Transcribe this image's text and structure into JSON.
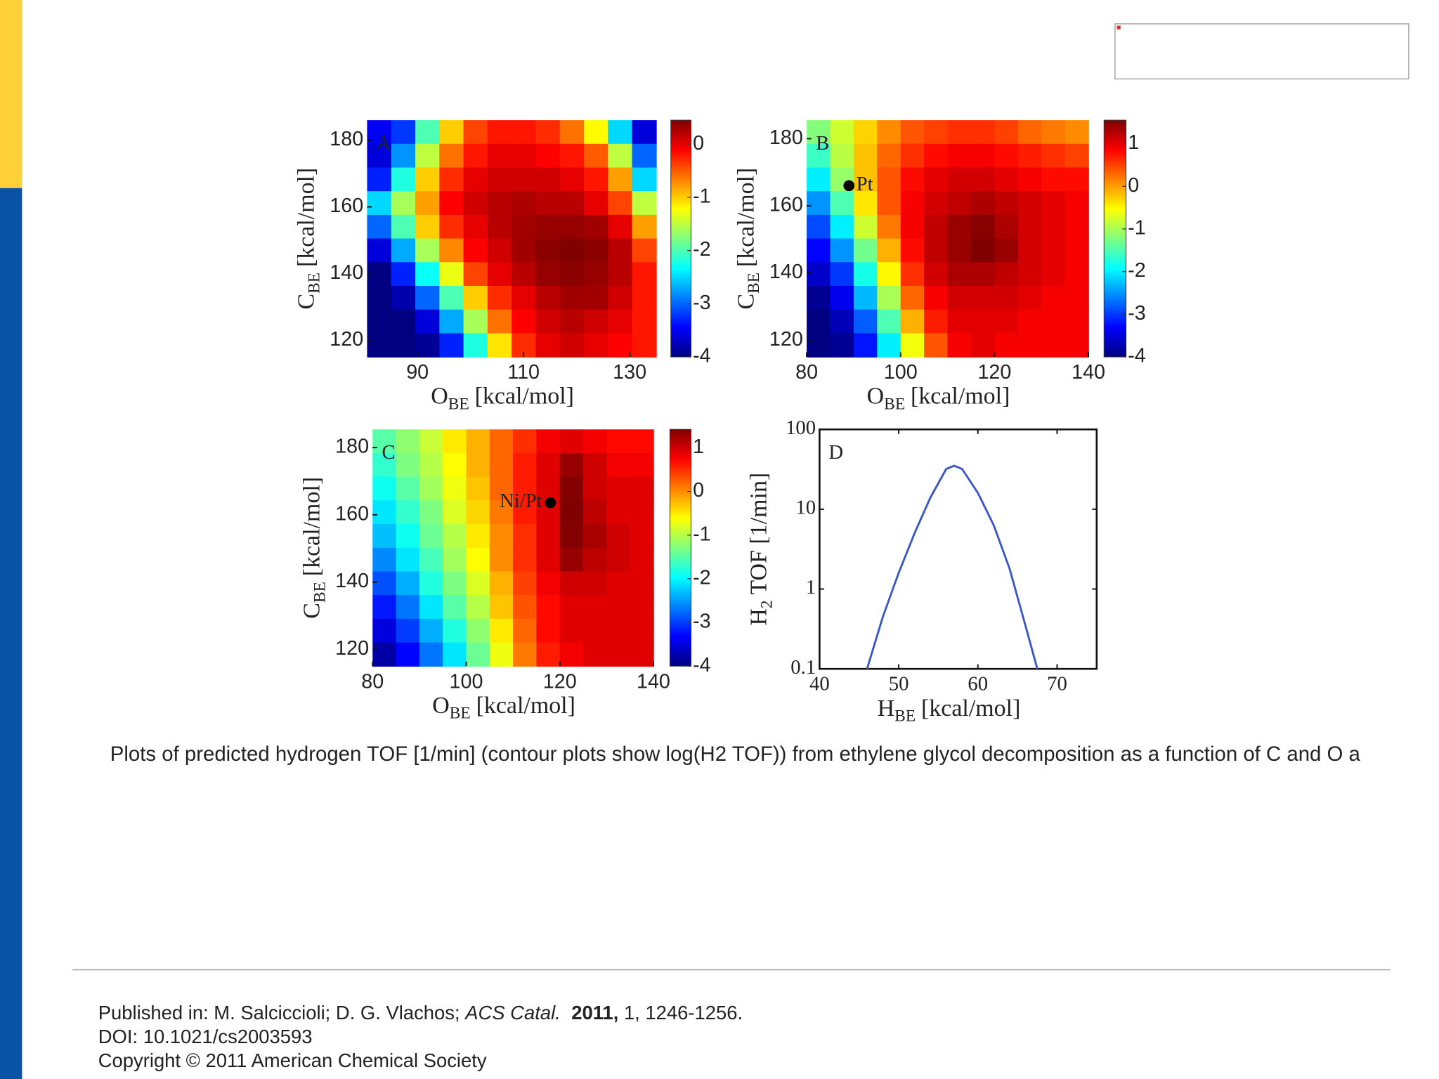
{
  "chart_data": [
    {
      "type": "heatmap",
      "panel": "A",
      "xlabel": {
        "text": "O",
        "sub": "BE",
        "unit": "[kcal/mol]"
      },
      "ylabel": {
        "text": "C",
        "sub": "BE",
        "unit": "[kcal/mol]"
      },
      "xlim": [
        80.5,
        135
      ],
      "xticks": [
        90,
        110,
        130
      ],
      "ylim": [
        115,
        186
      ],
      "yticks": [
        120,
        140,
        160,
        180
      ],
      "zlim": [
        -4,
        0.45
      ],
      "zticks": [
        0,
        -1,
        -2,
        -3,
        -4
      ],
      "z": [
        [
          -3.5,
          -3.2,
          -2,
          -1,
          -0.4,
          -0.2,
          -0.2,
          -0.3,
          -0.6,
          -1.2,
          -2.5,
          -3.6
        ],
        [
          -3.6,
          -2.8,
          -1.5,
          -0.6,
          -0.2,
          0,
          0,
          -0.1,
          -0.2,
          -0.5,
          -1.5,
          -3
        ],
        [
          -3.3,
          -2.2,
          -1,
          -0.3,
          0,
          0.1,
          0.1,
          0.1,
          0,
          -0.2,
          -0.8,
          -2.5
        ],
        [
          -2.5,
          -1.6,
          -0.8,
          -0.1,
          0.1,
          0.2,
          0.25,
          0.2,
          0.2,
          0,
          -0.4,
          -1.5
        ],
        [
          -3,
          -2,
          -1,
          -0.3,
          0,
          0.2,
          0.3,
          0.35,
          0.35,
          0.3,
          0,
          -0.8
        ],
        [
          -3.6,
          -2.7,
          -1.6,
          -0.7,
          -0.1,
          0.1,
          0.3,
          0.4,
          0.45,
          0.4,
          0.2,
          -0.4
        ],
        [
          -4,
          -3.3,
          -2.3,
          -1.3,
          -0.4,
          0,
          0.2,
          0.35,
          0.4,
          0.35,
          0.2,
          -0.2
        ],
        [
          -4,
          -3.8,
          -3,
          -2,
          -1,
          -0.3,
          0,
          0.2,
          0.3,
          0.3,
          0.1,
          -0.2
        ],
        [
          -4,
          -4,
          -3.6,
          -2.7,
          -1.6,
          -0.6,
          -0.1,
          0.1,
          0.2,
          0.1,
          0,
          -0.2
        ],
        [
          -4,
          -4,
          -3.9,
          -3.3,
          -2.2,
          -1.1,
          -0.3,
          0,
          0.1,
          0,
          -0.1,
          -0.2
        ]
      ]
    },
    {
      "type": "heatmap",
      "panel": "B",
      "xlabel": {
        "text": "O",
        "sub": "BE",
        "unit": "[kcal/mol]"
      },
      "ylabel": {
        "text": "C",
        "sub": "BE",
        "unit": "[kcal/mol]"
      },
      "xlim": [
        80,
        140
      ],
      "xticks": [
        80,
        100,
        120,
        140
      ],
      "ylim": [
        115,
        185.5
      ],
      "yticks": [
        120,
        140,
        160,
        180
      ],
      "zlim": [
        -4,
        1.55
      ],
      "zticks": [
        1,
        0,
        -1,
        -2,
        -3,
        -4
      ],
      "points": [
        {
          "x": 89,
          "y": 166,
          "label": "Pt"
        }
      ],
      "z": [
        [
          -1.2,
          -0.8,
          -0.3,
          0.1,
          0.4,
          0.5,
          0.6,
          0.6,
          0.5,
          0.3,
          0.2,
          0.1
        ],
        [
          -1.6,
          -0.9,
          -0.2,
          0.3,
          0.6,
          0.8,
          0.9,
          0.9,
          0.8,
          0.7,
          0.6,
          0.5
        ],
        [
          -2,
          -1.1,
          -0.2,
          0.4,
          0.8,
          1,
          1.1,
          1.1,
          1,
          0.9,
          0.8,
          0.8
        ],
        [
          -2.5,
          -1.5,
          -0.4,
          0.4,
          0.9,
          1.1,
          1.2,
          1.3,
          1.2,
          1.1,
          1,
          0.9
        ],
        [
          -2.9,
          -2,
          -0.8,
          0.2,
          0.9,
          1.2,
          1.4,
          1.5,
          1.3,
          1.1,
          1,
          0.9
        ],
        [
          -3.3,
          -2.5,
          -1.3,
          -0.1,
          0.8,
          1.2,
          1.4,
          1.55,
          1.4,
          1.1,
          1,
          0.9
        ],
        [
          -3.6,
          -3,
          -1.8,
          -0.5,
          0.6,
          1.1,
          1.3,
          1.3,
          1.2,
          1.1,
          1,
          0.9
        ],
        [
          -3.9,
          -3.4,
          -2.3,
          -1,
          0.3,
          0.9,
          1.1,
          1.1,
          1.1,
          1,
          0.9,
          0.9
        ],
        [
          -4,
          -3.7,
          -2.8,
          -1.5,
          -0.1,
          0.7,
          1,
          1,
          1,
          0.9,
          0.9,
          0.9
        ],
        [
          -4,
          -3.9,
          -3.2,
          -2,
          -0.6,
          0.4,
          0.9,
          1,
          0.9,
          0.9,
          0.9,
          0.9
        ]
      ]
    },
    {
      "type": "heatmap",
      "panel": "C",
      "xlabel": {
        "text": "O",
        "sub": "BE",
        "unit": "[kcal/mol]"
      },
      "ylabel": {
        "text": "C",
        "sub": "BE",
        "unit": "[kcal/mol]"
      },
      "xlim": [
        80,
        140
      ],
      "xticks": [
        80,
        100,
        120,
        140
      ],
      "ylim": [
        115,
        185.4
      ],
      "yticks": [
        120,
        140,
        160,
        180
      ],
      "zlim": [
        -4,
        1.42
      ],
      "zticks": [
        1,
        0,
        -1,
        -2,
        -3,
        -4
      ],
      "points": [
        {
          "x": 118,
          "y": 163.6,
          "label": "Ni/Pt"
        }
      ],
      "z": [
        [
          -1.5,
          -1.2,
          -0.9,
          -0.5,
          -0.2,
          0.2,
          0.5,
          0.8,
          0.9,
          0.8,
          0.7,
          0.7
        ],
        [
          -1.7,
          -1.3,
          -1,
          -0.6,
          -0.2,
          0.2,
          0.6,
          0.9,
          1.3,
          1,
          0.8,
          0.8
        ],
        [
          -1.9,
          -1.5,
          -1.1,
          -0.7,
          -0.3,
          0.2,
          0.6,
          0.9,
          1.4,
          1,
          0.9,
          0.9
        ],
        [
          -2.1,
          -1.7,
          -1.3,
          -0.8,
          -0.4,
          0.1,
          0.6,
          0.9,
          1.42,
          1.1,
          0.9,
          0.9
        ],
        [
          -2.3,
          -1.9,
          -1.4,
          -1,
          -0.5,
          0,
          0.5,
          0.9,
          1.4,
          1.2,
          1,
          0.9
        ],
        [
          -2.6,
          -2.1,
          -1.6,
          -1.1,
          -0.6,
          0,
          0.5,
          0.9,
          1.3,
          1.1,
          1,
          0.9
        ],
        [
          -2.9,
          -2.4,
          -1.8,
          -1.3,
          -0.8,
          -0.2,
          0.4,
          0.8,
          1,
          1,
          0.9,
          0.9
        ],
        [
          -3.2,
          -2.7,
          -2.1,
          -1.5,
          -1,
          -0.3,
          0.3,
          0.7,
          0.9,
          0.9,
          0.9,
          0.9
        ],
        [
          -3.5,
          -3,
          -2.4,
          -1.8,
          -1.2,
          -0.5,
          0.2,
          0.7,
          0.9,
          0.9,
          0.9,
          0.9
        ],
        [
          -3.8,
          -3.3,
          -2.7,
          -2.1,
          -1.4,
          -0.7,
          0.1,
          0.6,
          0.8,
          0.9,
          0.9,
          0.9
        ]
      ]
    },
    {
      "type": "line",
      "panel": "D",
      "xlabel": {
        "text": "H",
        "sub": "BE",
        "unit": "[kcal/mol]"
      },
      "ylabel": {
        "text": "H",
        "sub": "2",
        "unit": "TOF [1/min]"
      },
      "xlim": [
        40,
        75
      ],
      "xticks": [
        40,
        50,
        60,
        70
      ],
      "ylim": [
        0.1,
        100
      ],
      "yticks": [
        0.1,
        1,
        10,
        100
      ],
      "yscale": "log",
      "x": [
        46,
        48,
        50,
        52,
        54,
        56,
        57,
        58,
        60,
        62,
        64,
        66,
        67.5
      ],
      "series": [
        {
          "color": "#3a56c8",
          "values": [
            0.1,
            0.45,
            1.6,
            5,
            14,
            32,
            35,
            32,
            16,
            6.3,
            1.8,
            0.35,
            0.1
          ]
        }
      ]
    }
  ],
  "caption": "Plots of predicted hydrogen TOF [1/min] (contour plots show log(H2 TOF)) from ethylene glycol decomposition as a function of C and O a",
  "citation": {
    "authors": "Published in: M. Salciccioli; D. G. Vlachos;",
    "journal": "ACS Catal.",
    "year": "2011,",
    "pages": "1, 1246-1256.",
    "doi": "DOI: 10.1021/cs2003593",
    "copyright": "Copyright © 2011 American Chemical Society"
  }
}
